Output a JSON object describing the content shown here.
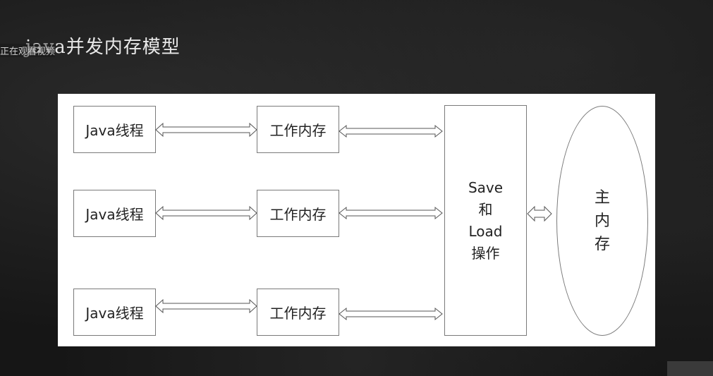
{
  "slide": {
    "title": "java并发内存模型",
    "overlay_text": "正在观看视频"
  },
  "diagram": {
    "threads": [
      {
        "thread_label": "Java线程",
        "work_label": "工作内存"
      },
      {
        "thread_label": "Java线程",
        "work_label": "工作内存"
      },
      {
        "thread_label": "Java线程",
        "work_label": "工作内存"
      }
    ],
    "save_load_lines": [
      "Save",
      "和",
      "Load",
      "操作"
    ],
    "main_memory_lines": [
      "主",
      "内",
      "存"
    ]
  }
}
